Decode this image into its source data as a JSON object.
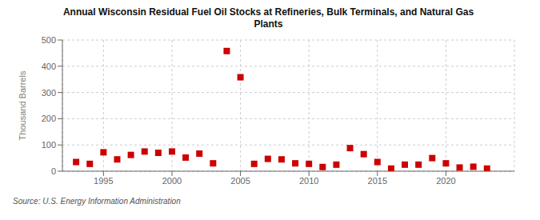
{
  "chart_data": {
    "type": "scatter",
    "title": "Annual Wisconsin Residual Fuel Oil Stocks at Refineries, Bulk Terminals, and Natural Gas\nPlants",
    "ylabel": "Thousand Barrels",
    "annotation": "Source: U.S. Energy Information Administration",
    "x": [
      1993,
      1994,
      1995,
      1996,
      1997,
      1998,
      1999,
      2000,
      2001,
      2002,
      2003,
      2004,
      2005,
      2006,
      2007,
      2008,
      2009,
      2010,
      2011,
      2012,
      2013,
      2014,
      2015,
      2016,
      2017,
      2018,
      2019,
      2020,
      2021,
      2022,
      2023
    ],
    "values": [
      35,
      28,
      72,
      45,
      62,
      75,
      70,
      75,
      52,
      67,
      30,
      458,
      358,
      28,
      47,
      45,
      30,
      28,
      16,
      25,
      88,
      65,
      35,
      10,
      25,
      25,
      50,
      30,
      14,
      17,
      10
    ],
    "color": "#cc0000",
    "marker": "square",
    "xlim": [
      1992,
      2025
    ],
    "xticks": [
      1995,
      2000,
      2005,
      2010,
      2015,
      2020
    ],
    "ylim": [
      0,
      500
    ],
    "yticks": [
      0,
      100,
      200,
      300,
      400,
      500
    ],
    "grid": true
  }
}
